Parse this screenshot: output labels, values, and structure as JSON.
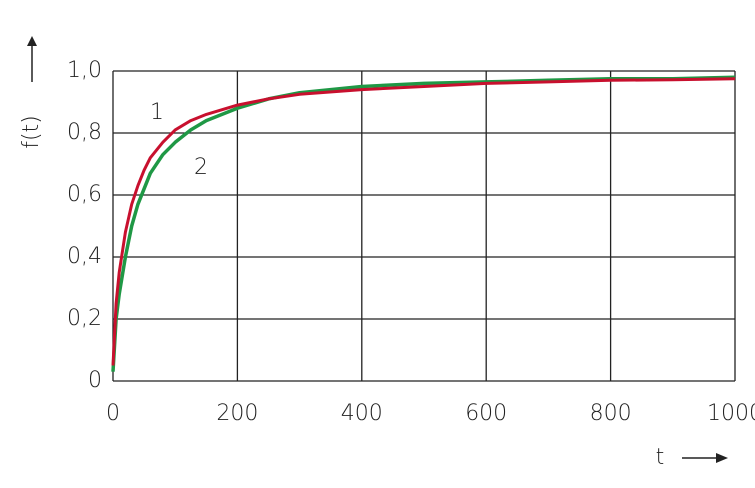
{
  "chart_data": {
    "type": "line",
    "y_label": "f(t)",
    "x_label": "t",
    "x": [
      0,
      5,
      10,
      20,
      30,
      40,
      50,
      60,
      80,
      100,
      125,
      150,
      200,
      250,
      300,
      400,
      500,
      600,
      700,
      800,
      900,
      1000
    ],
    "series": [
      {
        "name": "1",
        "color": "#c8102e",
        "values": [
          0.05,
          0.25,
          0.35,
          0.48,
          0.57,
          0.63,
          0.68,
          0.72,
          0.77,
          0.81,
          0.84,
          0.86,
          0.89,
          0.91,
          0.925,
          0.94,
          0.95,
          0.96,
          0.965,
          0.97,
          0.972,
          0.975
        ]
      },
      {
        "name": "2",
        "color": "#1f9845",
        "values": [
          0.03,
          0.2,
          0.28,
          0.4,
          0.5,
          0.57,
          0.62,
          0.67,
          0.73,
          0.77,
          0.81,
          0.84,
          0.88,
          0.91,
          0.93,
          0.95,
          0.96,
          0.965,
          0.97,
          0.975,
          0.975,
          0.98
        ]
      }
    ],
    "xlim": [
      0,
      1000
    ],
    "xticks": [
      0,
      200,
      400,
      600,
      800,
      1000
    ],
    "ylim": [
      0,
      1
    ],
    "yticks": [
      0,
      {
        "value": 0.2,
        "label": "0,2"
      },
      {
        "value": 0.4,
        "label": "0,4"
      },
      {
        "value": 0.6,
        "label": "0,6"
      },
      {
        "value": 0.8,
        "label": "0,8"
      },
      {
        "value": 1,
        "label": "1,0"
      }
    ],
    "grid": true
  }
}
